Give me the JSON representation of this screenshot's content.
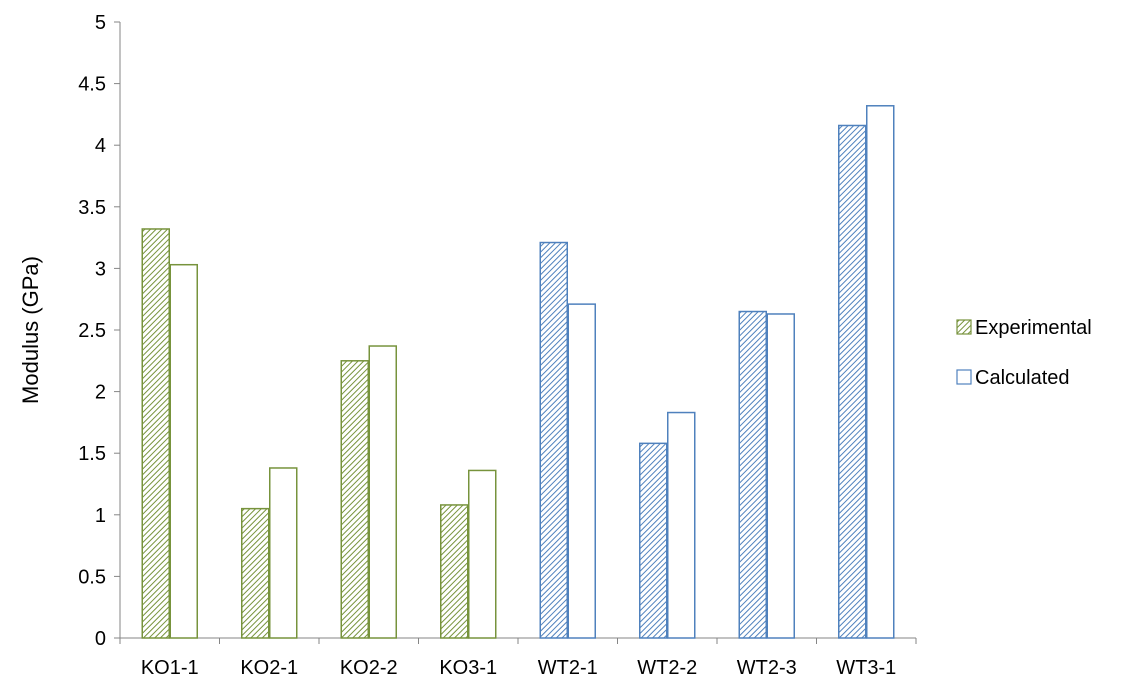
{
  "chart_data": {
    "type": "bar",
    "categories": [
      "KO1-1",
      "KO2-1",
      "KO2-2",
      "KO3-1",
      "WT2-1",
      "WT2-2",
      "WT2-3",
      "WT3-1"
    ],
    "series": [
      {
        "name": "Experimental",
        "values": [
          3.32,
          1.05,
          2.25,
          1.08,
          3.21,
          1.58,
          2.65,
          4.16
        ]
      },
      {
        "name": "Calculated",
        "values": [
          3.03,
          1.38,
          2.37,
          1.36,
          2.71,
          1.83,
          2.63,
          4.32
        ]
      }
    ],
    "category_colors": [
      "#77933C",
      "#77933C",
      "#77933C",
      "#77933C",
      "#4F81BD",
      "#4F81BD",
      "#4F81BD",
      "#4F81BD"
    ],
    "experimental_fill": "hatched",
    "calculated_fill": "white",
    "title": "",
    "xlabel": "",
    "ylabel": "Modulus (GPa)",
    "ylim": [
      0,
      5
    ],
    "ytick_step": 0.5,
    "yticks": [
      "0",
      "0.5",
      "1",
      "1.5",
      "2",
      "2.5",
      "3",
      "3.5",
      "4",
      "4.5",
      "5"
    ],
    "grid": false,
    "legend_position": "right"
  }
}
